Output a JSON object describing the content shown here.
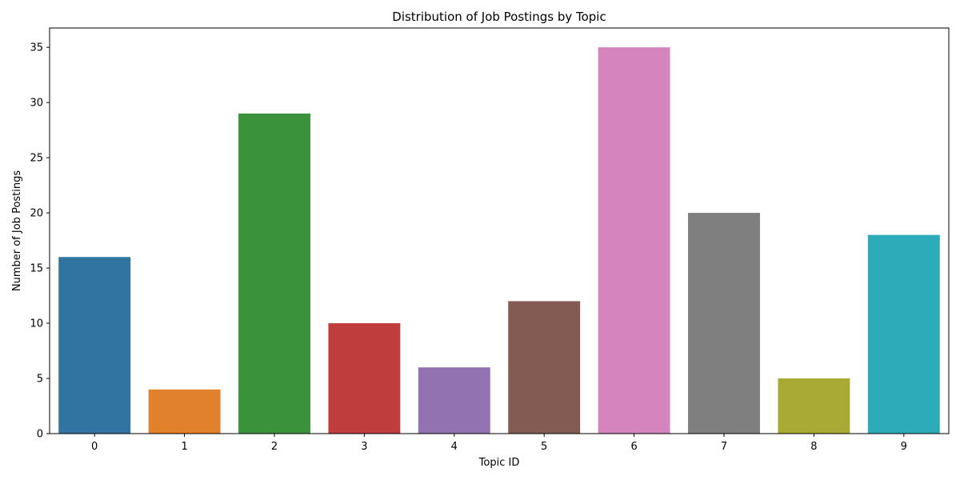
{
  "chart_data": {
    "type": "bar",
    "title": "Distribution of Job Postings by Topic",
    "xlabel": "Topic ID",
    "ylabel": "Number of Job Postings",
    "categories": [
      "0",
      "1",
      "2",
      "3",
      "4",
      "5",
      "6",
      "7",
      "8",
      "9"
    ],
    "values": [
      16,
      4,
      29,
      10,
      6,
      12,
      35,
      20,
      5,
      18
    ],
    "colors": [
      "#3274a1",
      "#e1812c",
      "#3a923a",
      "#c03d3e",
      "#9372b2",
      "#845b53",
      "#d684bd",
      "#7f7f7f",
      "#a9aa35",
      "#2eabb8"
    ],
    "ylim": [
      0,
      36.75
    ],
    "yticks": [
      0,
      5,
      10,
      15,
      20,
      25,
      30,
      35
    ],
    "grid": false,
    "legend": "none"
  }
}
